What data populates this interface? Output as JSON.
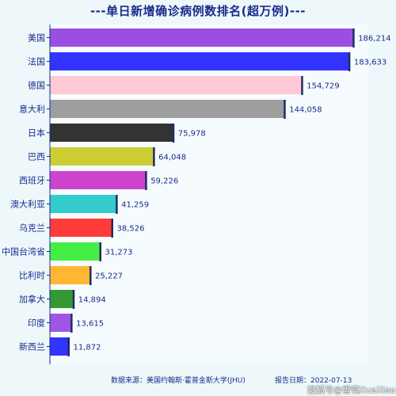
{
  "chart_data": {
    "type": "bar",
    "orientation": "horizontal",
    "title": "---单日新增确诊病例数排名(超万例)---",
    "categories": [
      "美国",
      "法国",
      "德国",
      "意大利",
      "日本",
      "巴西",
      "西班牙",
      "澳大利亚",
      "乌克兰",
      "中国台湾省",
      "比利时",
      "加拿大",
      "印度",
      "新西兰"
    ],
    "values": [
      186214,
      183633,
      154729,
      144058,
      75978,
      64048,
      59226,
      41259,
      38526,
      31273,
      25227,
      14894,
      13615,
      11872
    ],
    "value_labels": [
      "186,214",
      "183,633",
      "154,729",
      "144,058",
      "75,978",
      "64,048",
      "59,226",
      "41,259",
      "38,526",
      "31,273",
      "25,227",
      "14,894",
      "13,615",
      "11,872"
    ],
    "colors": [
      "#9b4fe0",
      "#3333ff",
      "#ffc9d6",
      "#9e9e9e",
      "#333333",
      "#cccc33",
      "#cc44cc",
      "#33cccc",
      "#ff3b3b",
      "#44ee44",
      "#ffb733",
      "#339933",
      "#a055e5",
      "#3333ff"
    ],
    "xlim": [
      0,
      190000
    ],
    "xlabel": "",
    "ylabel": "",
    "grid": false,
    "legend": "none"
  },
  "footer": {
    "source": "数据来源：美国约翰斯·霍普金斯大学(JHU)",
    "date": "报告日期：2022-07-13"
  },
  "watermark": "搜狐号@雪鸮XueXiao"
}
